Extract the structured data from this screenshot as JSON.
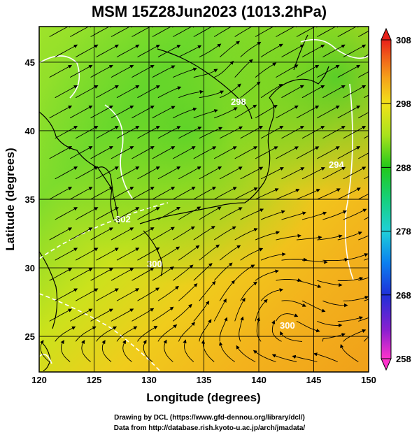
{
  "title": "MSM 15Z28Jun2023 (1013.2hPa)",
  "x_axis": {
    "label": "Longitude (degrees)",
    "ticks": [
      120,
      125,
      130,
      135,
      140,
      145,
      150
    ],
    "range": [
      120,
      150
    ]
  },
  "y_axis": {
    "label": "Latitude  (degrees)",
    "ticks": [
      25,
      30,
      35,
      40,
      45
    ],
    "range": [
      22.4,
      47.6
    ]
  },
  "colorbar": {
    "ticks": [
      258,
      268,
      278,
      288,
      298,
      308
    ],
    "range": [
      258,
      308
    ],
    "colors": [
      "#ff33cc",
      "#8a1fd0",
      "#1f2fd8",
      "#0b7ff0",
      "#1fd0d8",
      "#16d07c",
      "#22c81a",
      "#a8e21c",
      "#f2e21a",
      "#f5a21a",
      "#f05a1a",
      "#e8201a"
    ]
  },
  "credits": {
    "line1": "Drawing by DCL (https://www.gfd-dennou.org/library/dcl/)",
    "line2": "Data from http://database.rish.kyoto-u.ac.jp/arch/jmadata/"
  },
  "contour_labels": [
    "302",
    "300",
    "298",
    "294",
    "300"
  ]
}
